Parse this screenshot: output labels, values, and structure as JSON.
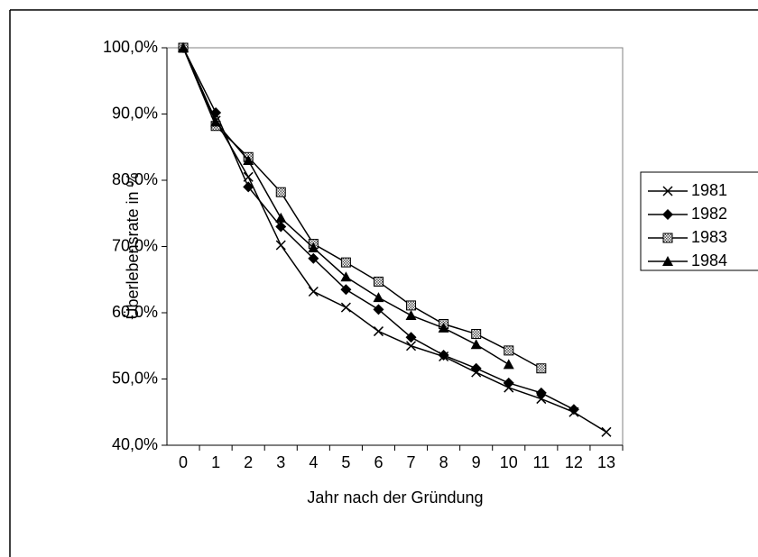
{
  "chart_data": {
    "type": "line",
    "x_label": "Jahr nach der Gründung",
    "y_label": "Überlebensrate in %",
    "categories": [
      "0",
      "1",
      "2",
      "3",
      "4",
      "5",
      "6",
      "7",
      "8",
      "9",
      "10",
      "11",
      "12",
      "13"
    ],
    "series": [
      {
        "name": "1981",
        "color": "#000000",
        "marker": "x",
        "values": [
          100,
          89,
          80.5,
          70.2,
          63.2,
          60.8,
          57.2,
          55,
          53.4,
          51,
          48.7,
          47,
          45,
          42
        ]
      },
      {
        "name": "1982",
        "color": "#000000",
        "marker": "diamond",
        "values": [
          100,
          90.2,
          79,
          73,
          68.2,
          63.5,
          60.5,
          56.3,
          53.6,
          51.6,
          49.4,
          47.9,
          45.4,
          null
        ]
      },
      {
        "name": "1983",
        "color": "#000000",
        "marker": "square",
        "values": [
          100,
          88.2,
          83.5,
          78.2,
          70.4,
          67.6,
          64.7,
          61.1,
          58.3,
          56.8,
          54.3,
          51.6,
          null,
          null
        ]
      },
      {
        "name": "1984",
        "color": "#000000",
        "marker": "triangle",
        "values": [
          100,
          88.8,
          83,
          74.3,
          69.8,
          65.4,
          62.3,
          59.6,
          57.7,
          55.2,
          52.2,
          null,
          null,
          null
        ]
      }
    ],
    "ylim": [
      40,
      100
    ],
    "yticks": [
      {
        "value": 40,
        "label": "40,0%"
      },
      {
        "value": 50,
        "label": "50,0%"
      },
      {
        "value": 60,
        "label": "60,0%"
      },
      {
        "value": 70,
        "label": "70,0%"
      },
      {
        "value": 80,
        "label": "80,0%"
      },
      {
        "value": 90,
        "label": "90,0%"
      },
      {
        "value": 100,
        "label": "100,0%"
      }
    ],
    "grid": false,
    "legend": "right"
  }
}
